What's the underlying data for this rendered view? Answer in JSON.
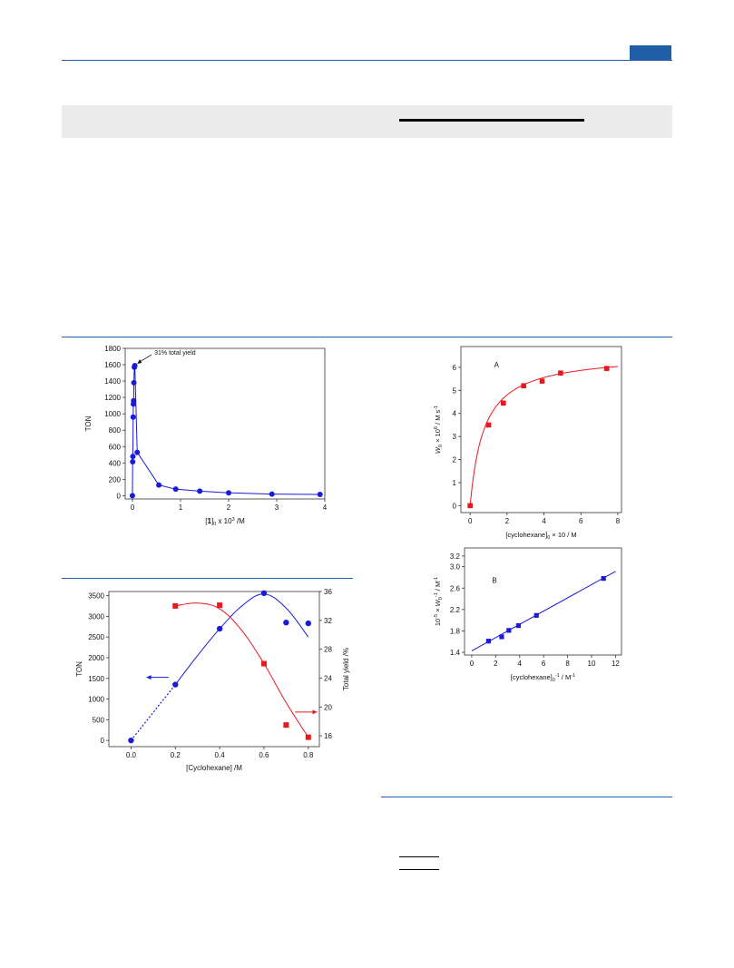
{
  "colors": {
    "accent": "#1f5fa8",
    "band": "#ececec",
    "blue": "#1a1ad9",
    "red": "#e8191d"
  },
  "chart_data": [
    {
      "id": "ton_vs_catalyst",
      "type": "line",
      "xlabel": {
        "bold": "1",
        "sub": "0",
        "rest": " x 10",
        "sup": "3",
        "unit": " /M"
      },
      "ylabel": "TON",
      "xlim": [
        -0.15,
        4
      ],
      "ylim": [
        -40,
        1800
      ],
      "xticks": [
        0,
        1,
        2,
        3,
        4
      ],
      "yticks": [
        0,
        200,
        400,
        600,
        800,
        1000,
        1200,
        1400,
        1600,
        1800
      ],
      "annotation": "31% total yield",
      "series": [
        {
          "color": "#1a1ad9",
          "x": [
            0.0,
            0.005,
            0.01,
            0.015,
            0.02,
            0.025,
            0.03,
            0.04,
            0.05,
            0.1,
            0.55,
            0.9,
            1.4,
            2.0,
            2.9,
            3.9
          ],
          "y": [
            0,
            415,
            480,
            960,
            1120,
            1160,
            1380,
            1570,
            1590,
            530,
            130,
            80,
            55,
            35,
            20,
            15
          ]
        }
      ]
    },
    {
      "id": "ton_yield_vs_cyclohexane",
      "type": "line",
      "xlabel": "[Cyclohexane] /M",
      "ylabel": "TON",
      "y2label": "Total yield /%",
      "xlim": [
        -0.1,
        0.85
      ],
      "ylim": [
        -150,
        3600
      ],
      "y2lim": [
        14.5,
        36
      ],
      "xticks": [
        0.0,
        0.2,
        0.4,
        0.6,
        0.8
      ],
      "yticks": [
        0,
        500,
        1000,
        1500,
        2000,
        2500,
        3000,
        3500
      ],
      "y2ticks": [
        16,
        20,
        24,
        28,
        32,
        36
      ],
      "series": [
        {
          "axis": "left",
          "color": "#1a1ad9",
          "marker": "circle",
          "x": [
            0.0,
            0.2,
            0.4,
            0.6,
            0.7,
            0.8
          ],
          "y": [
            0,
            1350,
            2700,
            3560,
            2850,
            2830
          ]
        },
        {
          "axis": "right",
          "color": "#e8191d",
          "marker": "square",
          "x": [
            0.2,
            0.4,
            0.6,
            0.7,
            0.8
          ],
          "y": [
            34.0,
            34.1,
            26.0,
            17.5,
            15.8
          ]
        }
      ]
    },
    {
      "id": "panel_A",
      "type": "scatter",
      "panel_label": "A",
      "xlabel": {
        "pre": "[cyclohexane]",
        "sub": "0",
        "rest": " × 10 / M"
      },
      "ylabel": {
        "pre": "W",
        "sub": "0",
        "mid": " × 10",
        "sup": "6",
        "rest": " / M s",
        "sup2": "-1"
      },
      "xlim": [
        -0.5,
        8.2
      ],
      "ylim": [
        -0.3,
        6.9
      ],
      "xticks": [
        0,
        2,
        4,
        6,
        8
      ],
      "yticks": [
        0,
        1,
        2,
        3,
        4,
        5,
        6
      ],
      "series": [
        {
          "color": "#e8191d",
          "marker": "square",
          "x": [
            0,
            1.0,
            1.8,
            2.9,
            3.9,
            4.9,
            7.4
          ],
          "y": [
            0,
            3.5,
            4.45,
            5.2,
            5.4,
            5.75,
            5.95
          ]
        }
      ]
    },
    {
      "id": "panel_B",
      "type": "scatter",
      "panel_label": "B",
      "xlabel": {
        "pre": "[cyclohexane]",
        "sub": "0",
        "sup": "-1",
        "rest": "  / M",
        "sup2": "-1"
      },
      "ylabel": {
        "pre": "10",
        "sup": "-5",
        "mid": " × W",
        "sub": "0",
        "sup2": "-1",
        "rest": " / M",
        "sup3": "-1"
      },
      "xlim": [
        -0.6,
        12.5
      ],
      "ylim": [
        1.35,
        3.35
      ],
      "xticks": [
        0,
        2,
        4,
        6,
        8,
        10,
        12
      ],
      "yticks": [
        1.4,
        1.8,
        2.2,
        2.6,
        3.0,
        3.2
      ],
      "series": [
        {
          "color": "#1a1ad9",
          "marker": "square",
          "x": [
            1.4,
            2.5,
            3.1,
            3.9,
            5.4,
            11.0
          ],
          "y": [
            1.61,
            1.69,
            1.81,
            1.9,
            2.09,
            2.78
          ]
        }
      ]
    }
  ]
}
